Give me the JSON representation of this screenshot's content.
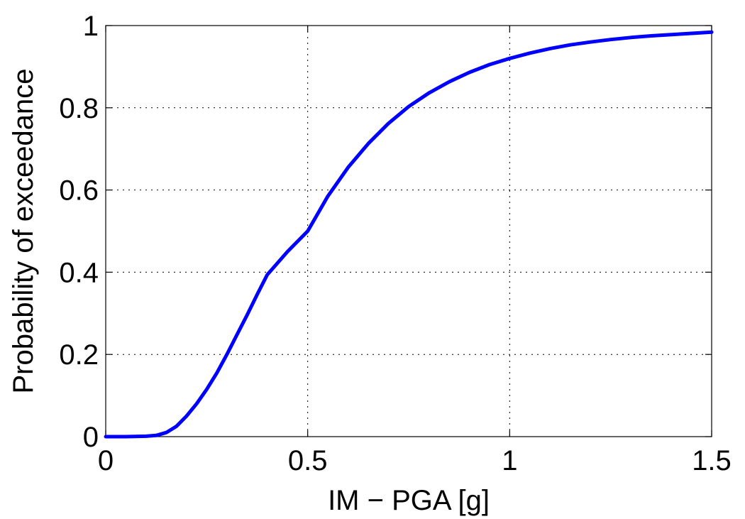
{
  "chart_data": {
    "type": "line",
    "title": "",
    "xlabel": "IM − PGA [g]",
    "ylabel": "Probability of exceedance",
    "xlim": [
      0,
      1.5
    ],
    "ylim": [
      0,
      1
    ],
    "xticks": [
      0,
      0.5,
      1,
      1.5
    ],
    "xtick_labels": [
      "0",
      "0.5",
      "1",
      "1.5"
    ],
    "yticks": [
      0,
      0.2,
      0.4,
      0.6,
      0.8,
      1
    ],
    "ytick_labels": [
      "0",
      "0.2",
      "0.4",
      "0.6",
      "0.8",
      "1"
    ],
    "grid": true,
    "legend": "none",
    "series": [
      {
        "color": "#0000ff",
        "x": [
          0,
          0.05,
          0.1,
          0.125,
          0.15,
          0.175,
          0.2,
          0.225,
          0.25,
          0.275,
          0.3,
          0.325,
          0.35,
          0.375,
          0.4,
          0.45,
          0.5,
          0.55,
          0.6,
          0.65,
          0.7,
          0.75,
          0.8,
          0.85,
          0.9,
          0.95,
          1.0,
          1.05,
          1.1,
          1.15,
          1.2,
          1.25,
          1.3,
          1.35,
          1.4,
          1.45,
          1.5
        ],
        "y": [
          0,
          0,
          0.001,
          0.003,
          0.01,
          0.025,
          0.05,
          0.08,
          0.115,
          0.155,
          0.2,
          0.248,
          0.296,
          0.346,
          0.394,
          0.45,
          0.5,
          0.585,
          0.655,
          0.713,
          0.762,
          0.803,
          0.836,
          0.863,
          0.886,
          0.905,
          0.92,
          0.933,
          0.944,
          0.953,
          0.96,
          0.966,
          0.971,
          0.975,
          0.978,
          0.981,
          0.984
        ]
      }
    ]
  }
}
